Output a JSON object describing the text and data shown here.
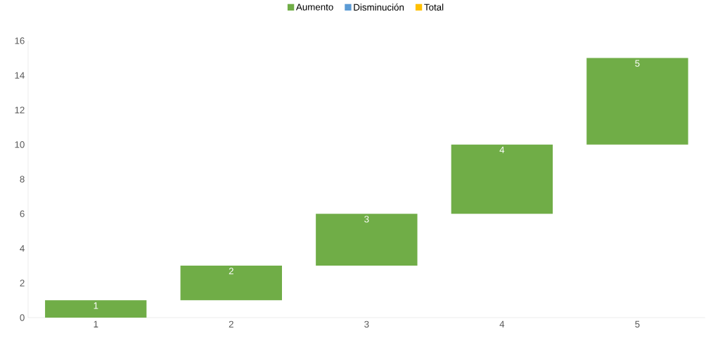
{
  "chart_data": {
    "type": "bar",
    "categories": [
      "1",
      "2",
      "3",
      "4",
      "5"
    ],
    "series": [
      {
        "name": "Aumento",
        "color": "#70ad47",
        "values": [
          1,
          2,
          3,
          4,
          5
        ],
        "base": [
          0,
          1,
          3,
          6,
          10
        ]
      },
      {
        "name": "Disminución",
        "color": "#5b9bd5",
        "values": [
          null,
          null,
          null,
          null,
          null
        ]
      },
      {
        "name": "Total",
        "color": "#ffc000",
        "values": [
          null,
          null,
          null,
          null,
          null
        ]
      }
    ],
    "ylim": [
      0,
      16
    ],
    "yticks": [
      0,
      2,
      4,
      6,
      8,
      10,
      12,
      14,
      16
    ],
    "data_labels": true,
    "legend": "top",
    "grid": false
  }
}
